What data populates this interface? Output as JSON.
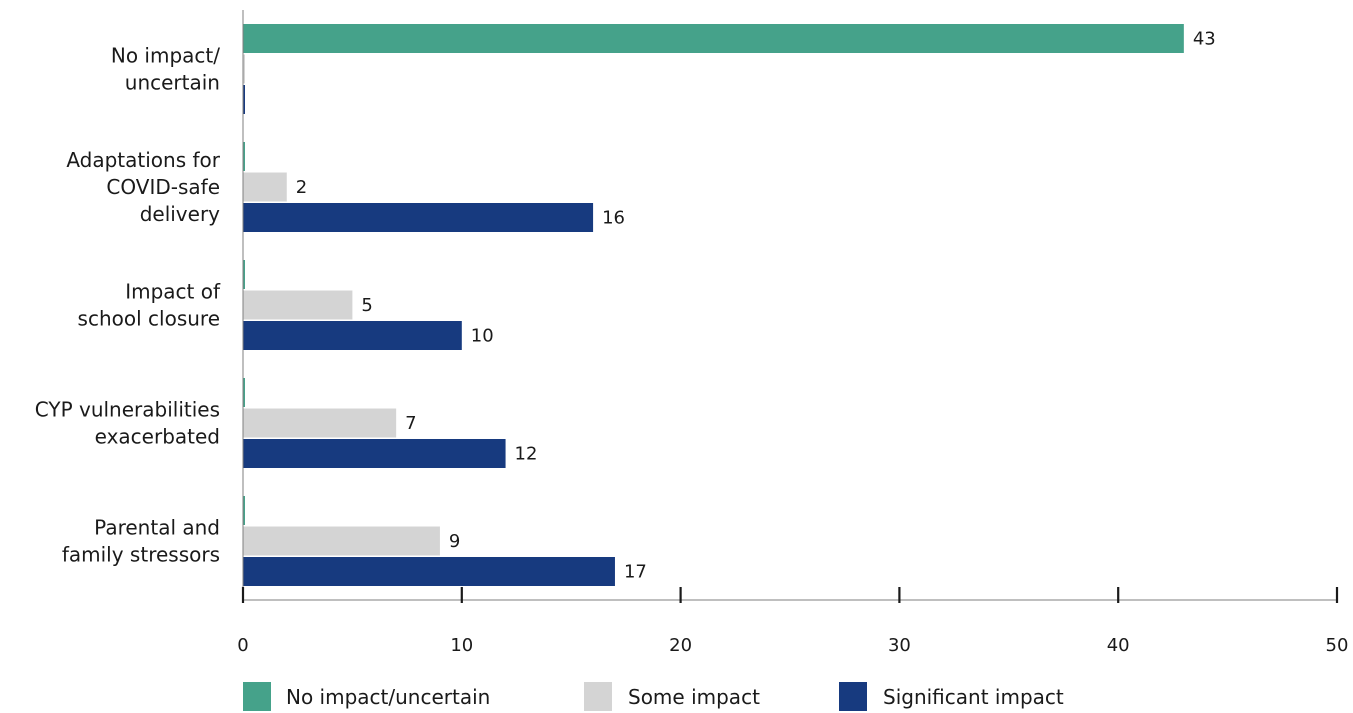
{
  "chart_data": {
    "type": "bar",
    "orientation": "horizontal",
    "categories": [
      [
        "No impact/",
        "uncertain"
      ],
      [
        "Adaptations for",
        "COVID-safe",
        "delivery"
      ],
      [
        "Impact of",
        "school closure"
      ],
      [
        "CYP vulnerabilities",
        "exacerbated"
      ],
      [
        "Parental and",
        "family stressors"
      ]
    ],
    "series": [
      {
        "name": "No impact/uncertain",
        "color": "#45a28a",
        "values": [
          43,
          0,
          0,
          0,
          0
        ]
      },
      {
        "name": "Some impact",
        "color": "#d4d4d4",
        "values": [
          0,
          2,
          5,
          7,
          9
        ]
      },
      {
        "name": "Significant impact",
        "color": "#173a7f",
        "values": [
          0,
          16,
          10,
          12,
          17
        ]
      }
    ],
    "xlim": [
      0,
      50
    ],
    "xticks": [
      0,
      10,
      20,
      30,
      40,
      50
    ],
    "title": "",
    "xlabel": "",
    "ylabel": "",
    "grid": false,
    "legend_position": "bottom"
  }
}
